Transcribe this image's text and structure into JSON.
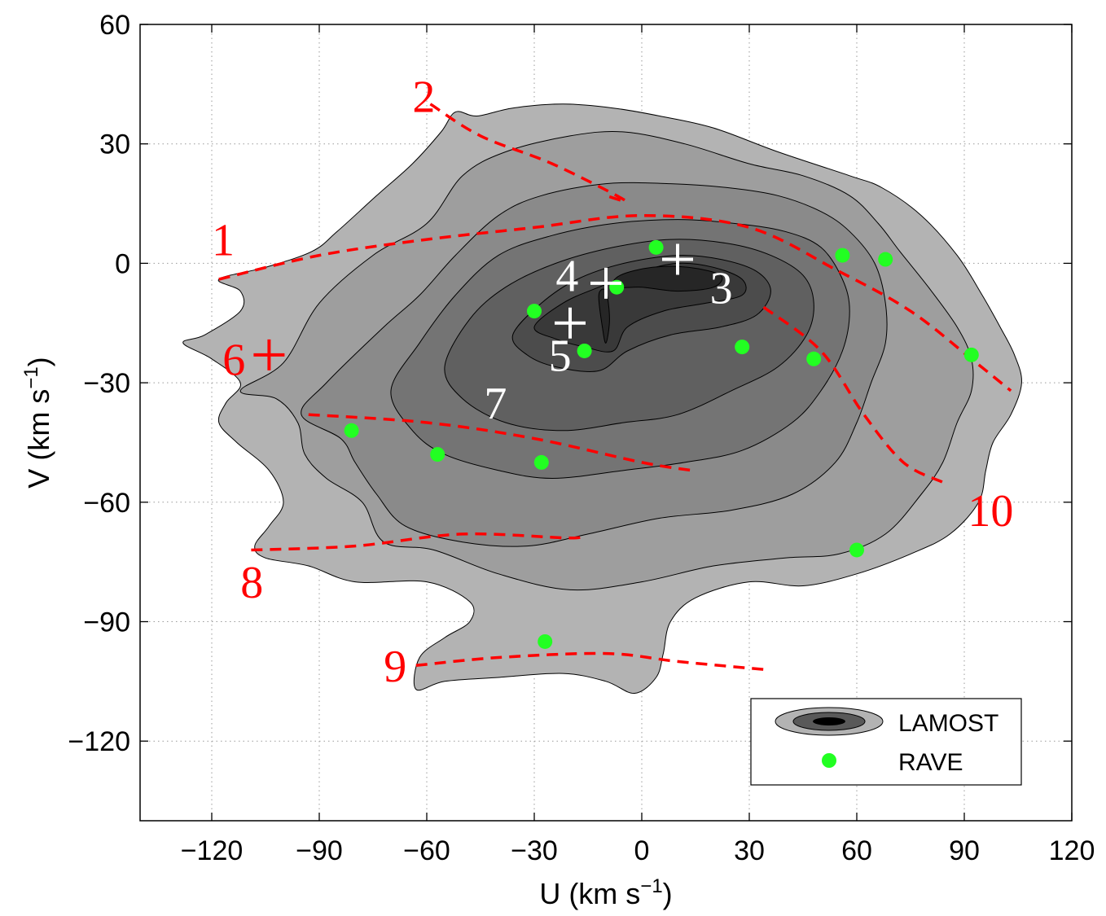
{
  "chart_data": {
    "type": "contour",
    "xlabel": "U (km s",
    "xlabel_sup": "−1",
    "xlabel_end": ")",
    "ylabel": "V (km s",
    "ylabel_sup": "−1",
    "ylabel_end": ")",
    "xlim": [
      -140,
      120
    ],
    "ylim": [
      -140,
      60
    ],
    "xticks": [
      -120,
      -90,
      -60,
      -30,
      0,
      30,
      60,
      90,
      120
    ],
    "xtick_labels": [
      "−120",
      "−90",
      "−60",
      "−30",
      "0",
      "30",
      "60",
      "90",
      "120"
    ],
    "yticks": [
      -120,
      -90,
      -60,
      -30,
      0,
      30,
      60
    ],
    "ytick_labels": [
      "−120",
      "−90",
      "−60",
      "−30",
      "0",
      "30",
      "60"
    ],
    "grid": true,
    "colors": {
      "level1": "#b3b3b3",
      "level2": "#9e9e9e",
      "level3": "#8a8a8a",
      "level4": "#747474",
      "level5": "#606060",
      "level6": "#4c4c4c",
      "level7": "#393939",
      "level8": "#262626",
      "rave": "#22ff22",
      "branch": "#ff0000",
      "marker_white": "#ffffff"
    },
    "contour_levels": [
      {
        "name": "level1",
        "points": [
          [
            -118,
            -4
          ],
          [
            -105,
            -1
          ],
          [
            -92,
            3
          ],
          [
            -85,
            8
          ],
          [
            -74,
            17
          ],
          [
            -64,
            25
          ],
          [
            -56,
            33
          ],
          [
            -52,
            38
          ],
          [
            -46,
            37
          ],
          [
            -36,
            39
          ],
          [
            -22,
            40
          ],
          [
            -8,
            39
          ],
          [
            5,
            37
          ],
          [
            20,
            34
          ],
          [
            38,
            28
          ],
          [
            58,
            22
          ],
          [
            67,
            19
          ],
          [
            78,
            12
          ],
          [
            88,
            2
          ],
          [
            95,
            -8
          ],
          [
            100,
            -16
          ],
          [
            104,
            -23
          ],
          [
            106,
            -30
          ],
          [
            103,
            -38
          ],
          [
            98,
            -45
          ],
          [
            96,
            -52
          ],
          [
            94,
            -60
          ],
          [
            86,
            -68
          ],
          [
            75,
            -73
          ],
          [
            60,
            -78
          ],
          [
            45,
            -81
          ],
          [
            30,
            -80
          ],
          [
            15,
            -84
          ],
          [
            8,
            -90
          ],
          [
            6,
            -98
          ],
          [
            4,
            -104
          ],
          [
            -2,
            -108
          ],
          [
            -10,
            -105
          ],
          [
            -22,
            -103
          ],
          [
            -40,
            -104
          ],
          [
            -55,
            -105
          ],
          [
            -63,
            -107
          ],
          [
            -62,
            -99
          ],
          [
            -55,
            -94
          ],
          [
            -48,
            -90
          ],
          [
            -48,
            -85
          ],
          [
            -60,
            -80
          ],
          [
            -80,
            -80
          ],
          [
            -93,
            -76
          ],
          [
            -105,
            -74
          ],
          [
            -108,
            -71
          ],
          [
            -104,
            -66
          ],
          [
            -100,
            -60
          ],
          [
            -104,
            -52
          ],
          [
            -113,
            -45
          ],
          [
            -118,
            -40
          ],
          [
            -116,
            -35
          ],
          [
            -112,
            -30
          ],
          [
            -120,
            -24
          ],
          [
            -128,
            -20
          ],
          [
            -122,
            -18
          ],
          [
            -112,
            -12
          ],
          [
            -112,
            -7
          ]
        ]
      },
      {
        "name": "level2",
        "points": [
          [
            -112,
            -32
          ],
          [
            -100,
            -25
          ],
          [
            -90,
            -10
          ],
          [
            -75,
            2
          ],
          [
            -60,
            10
          ],
          [
            -50,
            22
          ],
          [
            -38,
            28
          ],
          [
            -20,
            32
          ],
          [
            -5,
            33
          ],
          [
            12,
            30
          ],
          [
            30,
            25
          ],
          [
            45,
            22
          ],
          [
            58,
            17
          ],
          [
            66,
            10
          ],
          [
            72,
            3
          ],
          [
            80,
            -6
          ],
          [
            88,
            -16
          ],
          [
            92,
            -24
          ],
          [
            92,
            -32
          ],
          [
            88,
            -40
          ],
          [
            84,
            -50
          ],
          [
            78,
            -58
          ],
          [
            68,
            -68
          ],
          [
            55,
            -73
          ],
          [
            40,
            -74
          ],
          [
            20,
            -76
          ],
          [
            0,
            -80
          ],
          [
            -20,
            -82
          ],
          [
            -40,
            -78
          ],
          [
            -58,
            -72
          ],
          [
            -72,
            -70
          ],
          [
            -78,
            -60
          ],
          [
            -88,
            -54
          ],
          [
            -94,
            -48
          ],
          [
            -96,
            -40
          ],
          [
            -102,
            -34
          ]
        ]
      },
      {
        "name": "level3",
        "points": [
          [
            -95,
            -38
          ],
          [
            -88,
            -30
          ],
          [
            -72,
            -16
          ],
          [
            -62,
            -8
          ],
          [
            -52,
            2
          ],
          [
            -40,
            12
          ],
          [
            -28,
            17
          ],
          [
            -10,
            20
          ],
          [
            8,
            20
          ],
          [
            24,
            19
          ],
          [
            38,
            17
          ],
          [
            50,
            13
          ],
          [
            58,
            8
          ],
          [
            65,
            0
          ],
          [
            68,
            -10
          ],
          [
            68,
            -20
          ],
          [
            64,
            -30
          ],
          [
            60,
            -40
          ],
          [
            54,
            -50
          ],
          [
            42,
            -58
          ],
          [
            25,
            -62
          ],
          [
            5,
            -64
          ],
          [
            -15,
            -68
          ],
          [
            -32,
            -71
          ],
          [
            -50,
            -70
          ],
          [
            -66,
            -66
          ],
          [
            -74,
            -58
          ],
          [
            -80,
            -50
          ],
          [
            -84,
            -44
          ]
        ]
      },
      {
        "name": "level4",
        "points": [
          [
            -70,
            -32
          ],
          [
            -62,
            -20
          ],
          [
            -52,
            -8
          ],
          [
            -40,
            2
          ],
          [
            -25,
            7
          ],
          [
            -8,
            10
          ],
          [
            10,
            11
          ],
          [
            26,
            10
          ],
          [
            40,
            8
          ],
          [
            50,
            4
          ],
          [
            56,
            -4
          ],
          [
            58,
            -12
          ],
          [
            56,
            -22
          ],
          [
            50,
            -32
          ],
          [
            42,
            -40
          ],
          [
            28,
            -47
          ],
          [
            12,
            -50
          ],
          [
            -5,
            -52
          ],
          [
            -25,
            -54
          ],
          [
            -40,
            -52
          ],
          [
            -55,
            -48
          ],
          [
            -64,
            -42
          ]
        ]
      },
      {
        "name": "level5",
        "points": [
          [
            -55,
            -26
          ],
          [
            -48,
            -14
          ],
          [
            -38,
            -6
          ],
          [
            -24,
            0
          ],
          [
            -8,
            4
          ],
          [
            8,
            6
          ],
          [
            24,
            5
          ],
          [
            36,
            2
          ],
          [
            45,
            -3
          ],
          [
            48,
            -10
          ],
          [
            46,
            -18
          ],
          [
            38,
            -26
          ],
          [
            25,
            -32
          ],
          [
            10,
            -38
          ],
          [
            -5,
            -40
          ],
          [
            -22,
            -42
          ],
          [
            -38,
            -40
          ],
          [
            -50,
            -34
          ]
        ]
      },
      {
        "name": "level6",
        "points": [
          [
            -36,
            -18
          ],
          [
            -28,
            -10
          ],
          [
            -18,
            -4
          ],
          [
            -5,
            0
          ],
          [
            10,
            2
          ],
          [
            22,
            1
          ],
          [
            32,
            -2
          ],
          [
            36,
            -7
          ],
          [
            32,
            -13
          ],
          [
            22,
            -16
          ],
          [
            8,
            -18
          ],
          [
            -4,
            -22
          ],
          [
            -12,
            -27
          ],
          [
            -24,
            -26
          ],
          [
            -32,
            -23
          ]
        ]
      },
      {
        "name": "level7",
        "points": [
          [
            -30,
            -16
          ],
          [
            -22,
            -10
          ],
          [
            -12,
            -6
          ],
          [
            0,
            -2
          ],
          [
            10,
            0
          ],
          [
            20,
            -1
          ],
          [
            28,
            -4
          ],
          [
            28,
            -8
          ],
          [
            18,
            -10
          ],
          [
            6,
            -12
          ],
          [
            -4,
            -16
          ],
          [
            -8,
            -22
          ],
          [
            -16,
            -21
          ],
          [
            -24,
            -19
          ]
        ]
      },
      {
        "name": "level8",
        "points": [
          [
            -6,
            -3
          ],
          [
            3,
            -1
          ],
          [
            13,
            -1
          ],
          [
            22,
            -3
          ],
          [
            20,
            -6
          ],
          [
            10,
            -7
          ],
          [
            0,
            -6
          ],
          [
            -8,
            -6
          ]
        ]
      },
      {
        "name": "level8",
        "points": [
          [
            -12,
            -8
          ],
          [
            -10,
            -7
          ],
          [
            -9,
            -14
          ],
          [
            -10,
            -20
          ],
          [
            -11,
            -16
          ]
        ]
      }
    ],
    "rave_points": [
      {
        "x": 4,
        "y": 4
      },
      {
        "x": -7,
        "y": -6
      },
      {
        "x": -30,
        "y": -12
      },
      {
        "x": -16,
        "y": -22
      },
      {
        "x": 28,
        "y": -21
      },
      {
        "x": 48,
        "y": -24
      },
      {
        "x": 56,
        "y": 2
      },
      {
        "x": 68,
        "y": 1
      },
      {
        "x": 92,
        "y": -23
      },
      {
        "x": -81,
        "y": -42
      },
      {
        "x": -57,
        "y": -48
      },
      {
        "x": -28,
        "y": -50
      },
      {
        "x": 60,
        "y": -72
      },
      {
        "x": -27,
        "y": -95
      }
    ],
    "branches": [
      {
        "id": "1",
        "points": [
          [
            -118,
            -4
          ],
          [
            -90,
            2
          ],
          [
            -60,
            6
          ],
          [
            -30,
            9
          ],
          [
            0,
            12
          ],
          [
            30,
            9
          ],
          [
            55,
            -2
          ],
          [
            75,
            -12
          ],
          [
            92,
            -24
          ],
          [
            103,
            -32
          ]
        ]
      },
      {
        "id": "2",
        "points": [
          [
            -59,
            40
          ],
          [
            -45,
            32
          ],
          [
            -25,
            25
          ],
          [
            -5,
            16
          ],
          [
            -10,
            17
          ]
        ]
      },
      {
        "id": "8",
        "points": [
          [
            -109,
            -72
          ],
          [
            -80,
            -71
          ],
          [
            -50,
            -68
          ],
          [
            -20,
            -69
          ],
          [
            -17,
            -68
          ]
        ]
      },
      {
        "id": "9",
        "points": [
          [
            -63,
            -101
          ],
          [
            -40,
            -99
          ],
          [
            -10,
            -98
          ],
          [
            10,
            -100
          ],
          [
            34,
            -102
          ]
        ]
      },
      {
        "id": "10",
        "points": [
          [
            34,
            -11
          ],
          [
            50,
            -22
          ],
          [
            62,
            -38
          ],
          [
            73,
            -50
          ],
          [
            84,
            -55
          ]
        ]
      },
      {
        "id": "7-line",
        "points": [
          [
            -93,
            -38
          ],
          [
            -60,
            -40
          ],
          [
            -30,
            -44
          ],
          [
            0,
            -50
          ],
          [
            14,
            -52
          ]
        ]
      }
    ],
    "crosses": [
      {
        "label": "3",
        "x": 10,
        "y": 1
      },
      {
        "label": "4",
        "x": -10,
        "y": -5
      },
      {
        "label": "5",
        "x": -20,
        "y": -15
      },
      {
        "label": "6",
        "x": -104,
        "y": -23
      }
    ],
    "annotations": [
      {
        "text": "1",
        "x": -120,
        "y": 2,
        "color": "red"
      },
      {
        "text": "2",
        "x": -64,
        "y": 38,
        "color": "red"
      },
      {
        "text": "3",
        "x": 19,
        "y": -10,
        "color": "white"
      },
      {
        "text": "4",
        "x": -24,
        "y": -7,
        "color": "white"
      },
      {
        "text": "5",
        "x": -26,
        "y": -27,
        "color": "white"
      },
      {
        "text": "6",
        "x": -117,
        "y": -28,
        "color": "red"
      },
      {
        "text": "7",
        "x": -44,
        "y": -39,
        "color": "white"
      },
      {
        "text": "8",
        "x": -112,
        "y": -84,
        "color": "red"
      },
      {
        "text": "9",
        "x": -72,
        "y": -105,
        "color": "red"
      },
      {
        "text": "10",
        "x": 91,
        "y": -66,
        "color": "red"
      }
    ],
    "legend": {
      "entries": [
        {
          "label": "LAMOST",
          "kind": "contour"
        },
        {
          "label": "RAVE",
          "kind": "marker"
        }
      ],
      "placement": "bottom-right"
    }
  }
}
